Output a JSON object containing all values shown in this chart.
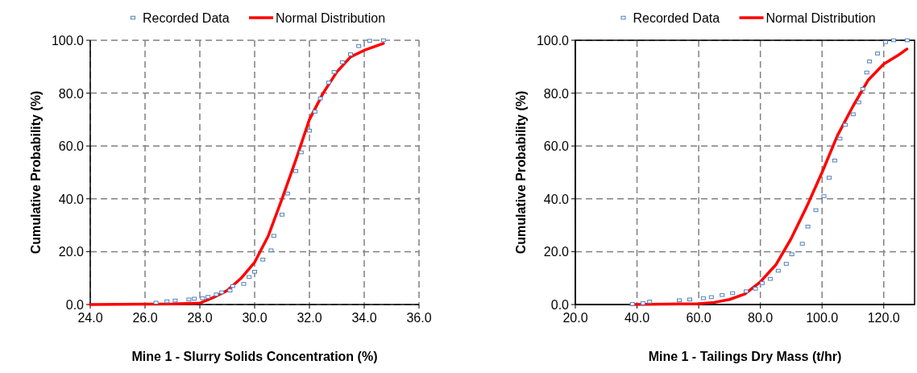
{
  "chart_data": [
    {
      "type": "scatter",
      "xlabel": "Mine 1 - Slurry Solids Concentration (%)",
      "ylabel": "Cumulative Probability (%)",
      "legend": "top",
      "grid": true,
      "xlim": [
        24,
        36
      ],
      "xticks": [
        {
          "value": 24,
          "label": "24.0"
        },
        {
          "value": 26,
          "label": "26.0"
        },
        {
          "value": 28,
          "label": "28.0"
        },
        {
          "value": 30,
          "label": "30.0"
        },
        {
          "value": 32,
          "label": "32.0"
        },
        {
          "value": 34,
          "label": "34.0"
        },
        {
          "value": 36,
          "label": "36.0"
        }
      ],
      "ylim": [
        0,
        100
      ],
      "yticks": [
        {
          "value": 0,
          "label": "0.0"
        },
        {
          "value": 20,
          "label": "20.0"
        },
        {
          "value": 40,
          "label": "40.0"
        },
        {
          "value": 60,
          "label": "60.0"
        },
        {
          "value": 80,
          "label": "80.0"
        },
        {
          "value": 100,
          "label": "100.0"
        }
      ],
      "series": [
        {
          "name": "Recorded Data",
          "marker": "square",
          "color": "#4f81bd",
          "x": [
            26.4,
            26.8,
            27.1,
            27.6,
            27.8,
            28.1,
            28.3,
            28.6,
            28.8,
            29.1,
            29.2,
            29.6,
            29.8,
            30.0,
            30.3,
            30.6,
            30.7,
            31.0,
            31.2,
            31.5,
            31.7,
            32.0,
            32.2,
            32.4,
            32.7,
            32.9,
            33.2,
            33.5,
            33.8,
            34.2,
            34.7
          ],
          "values": [
            0.7,
            1.2,
            1.5,
            1.9,
            2.2,
            2.4,
            2.9,
            3.8,
            4.6,
            5.3,
            7,
            7.8,
            10.4,
            12.4,
            17,
            20.5,
            26,
            34,
            42,
            50.5,
            57.6,
            65.8,
            73,
            78,
            84,
            88,
            91.7,
            94.7,
            97.8,
            99.8,
            100
          ]
        },
        {
          "name": "Normal Distribution",
          "type": "line",
          "marker": "none",
          "line_style": "solid",
          "color": "#ff0000",
          "x": [
            24,
            27,
            28,
            28.5,
            29,
            29.5,
            30,
            30.5,
            31,
            31.5,
            32,
            32.5,
            33,
            33.5,
            34,
            34.7
          ],
          "values": [
            0,
            0.2,
            0.5,
            2.7,
            5.3,
            9.9,
            16,
            26,
            40,
            54.6,
            70,
            80,
            88,
            93.7,
            96.2,
            98.8
          ]
        }
      ]
    },
    {
      "type": "scatter",
      "xlabel": "Mine 1 - Tailings Dry Mass (t/hr)",
      "ylabel": "Cumulative Probability (%)",
      "legend": "top",
      "grid": true,
      "xlim": [
        20,
        130
      ],
      "xticks": [
        {
          "value": 20,
          "label": "20.0"
        },
        {
          "value": 40,
          "label": "40.0"
        },
        {
          "value": 60,
          "label": "60.0"
        },
        {
          "value": 80,
          "label": "80.0"
        },
        {
          "value": 100,
          "label": "100.0"
        },
        {
          "value": 120,
          "label": "120.0"
        }
      ],
      "ylim": [
        0,
        100
      ],
      "yticks": [
        {
          "value": 0,
          "label": "0.0"
        },
        {
          "value": 20,
          "label": "20.0"
        },
        {
          "value": 40,
          "label": "40.0"
        },
        {
          "value": 60,
          "label": "60.0"
        },
        {
          "value": 80,
          "label": "80.0"
        },
        {
          "value": 100,
          "label": "100.0"
        }
      ],
      "series": [
        {
          "name": "Recorded Data",
          "marker": "square",
          "color": "#4f81bd",
          "x": [
            38.5,
            41.9,
            44.1,
            53.7,
            57.1,
            61.5,
            64.1,
            67.6,
            71,
            75.4,
            78.4,
            80.6,
            83.2,
            85.8,
            88.4,
            90.2,
            93.6,
            95.4,
            98,
            100.6,
            102.3,
            104.1,
            105.8,
            107.5,
            110.1,
            111.9,
            113.2,
            114.5,
            115.4,
            118,
            120.6,
            123.2,
            127.6
          ],
          "values": [
            0.2,
            0.5,
            1.1,
            1.6,
            1.9,
            2.4,
            2.8,
            3.6,
            4.3,
            5,
            6,
            8.1,
            9.7,
            12.8,
            15.4,
            19,
            23,
            29.5,
            35.7,
            41,
            48,
            54.5,
            62.8,
            68,
            72,
            76.5,
            81.6,
            87.8,
            92,
            95,
            99.3,
            100,
            100
          ]
        },
        {
          "name": "Normal Distribution",
          "type": "line",
          "marker": "none",
          "line_style": "solid",
          "color": "#ff0000",
          "x": [
            38,
            60,
            65,
            70,
            75,
            80,
            85,
            90,
            95,
            100,
            105,
            110,
            115,
            120,
            125,
            127.5
          ],
          "values": [
            0,
            0.3,
            0.8,
            1.9,
            4,
            8.6,
            15,
            25,
            37,
            50,
            64,
            75,
            85,
            91,
            94.6,
            96.7
          ]
        }
      ]
    }
  ]
}
